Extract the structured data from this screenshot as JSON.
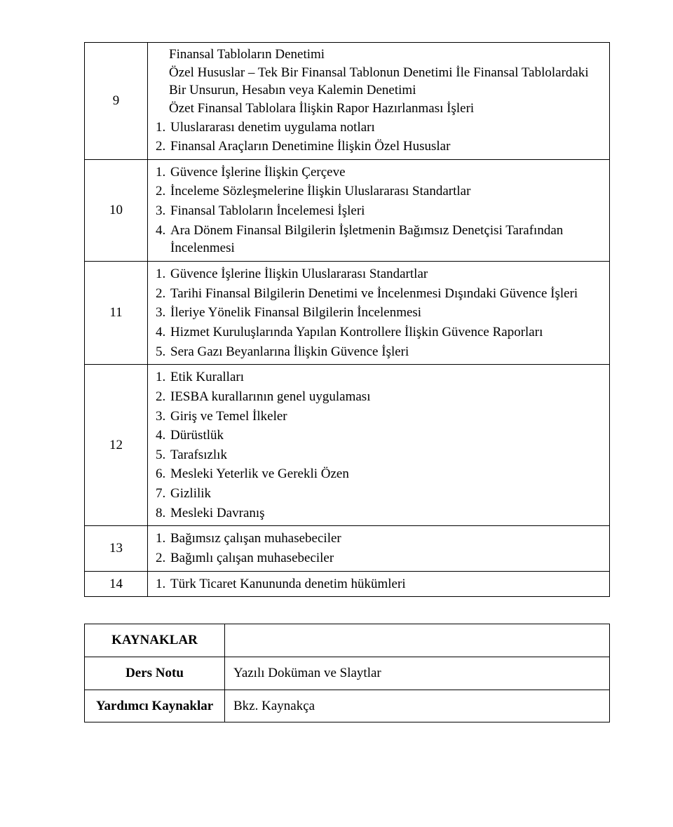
{
  "rows": [
    {
      "week": "9",
      "extras": [
        "Finansal Tabloların Denetimi",
        "Özel Hususlar – Tek Bir Finansal Tablonun Denetimi İle Finansal Tablolardaki Bir Unsurun, Hesabın veya Kalemin Denetimi",
        "Özet Finansal Tablolara İlişkin Rapor Hazırlanması İşleri"
      ],
      "items": [
        "Uluslararası denetim uygulama notları",
        "Finansal Araçların Denetimine İlişkin Özel Hususlar"
      ]
    },
    {
      "week": "10",
      "items": [
        "Güvence İşlerine İlişkin Çerçeve",
        "İnceleme Sözleşmelerine İlişkin Uluslararası Standartlar",
        "Finansal Tabloların İncelemesi İşleri",
        "Ara Dönem Finansal Bilgilerin İşletmenin Bağımsız Denetçisi Tarafından İncelenmesi"
      ]
    },
    {
      "week": "11",
      "items": [
        "Güvence İşlerine İlişkin Uluslararası Standartlar",
        "Tarihi Finansal Bilgilerin Denetimi ve İncelenmesi Dışındaki Güvence İşleri",
        "İleriye Yönelik Finansal Bilgilerin İncelenmesi",
        "Hizmet Kuruluşlarında Yapılan Kontrollere İlişkin Güvence Raporları",
        "Sera Gazı Beyanlarına İlişkin Güvence İşleri"
      ]
    },
    {
      "week": "12",
      "items": [
        "Etik Kuralları",
        "IESBA kurallarının genel uygulaması",
        "Giriş ve Temel İlkeler",
        "Dürüstlük",
        "Tarafsızlık",
        "Mesleki Yeterlik ve Gerekli Özen",
        "Gizlilik",
        "Mesleki Davranış"
      ]
    },
    {
      "week": "13",
      "items": [
        "Bağımsız çalışan muhasebeciler",
        "Bağımlı çalışan muhasebeciler"
      ]
    },
    {
      "week": "14",
      "items": [
        "Türk Ticaret Kanununda denetim hükümleri"
      ]
    }
  ],
  "kaynak": {
    "header": "KAYNAKLAR",
    "ders_label": "Ders Notu",
    "ders_value": "Yazılı Doküman ve Slaytlar",
    "yard_label": "Yardımcı Kaynaklar",
    "yard_value": "Bkz. Kaynakça"
  }
}
